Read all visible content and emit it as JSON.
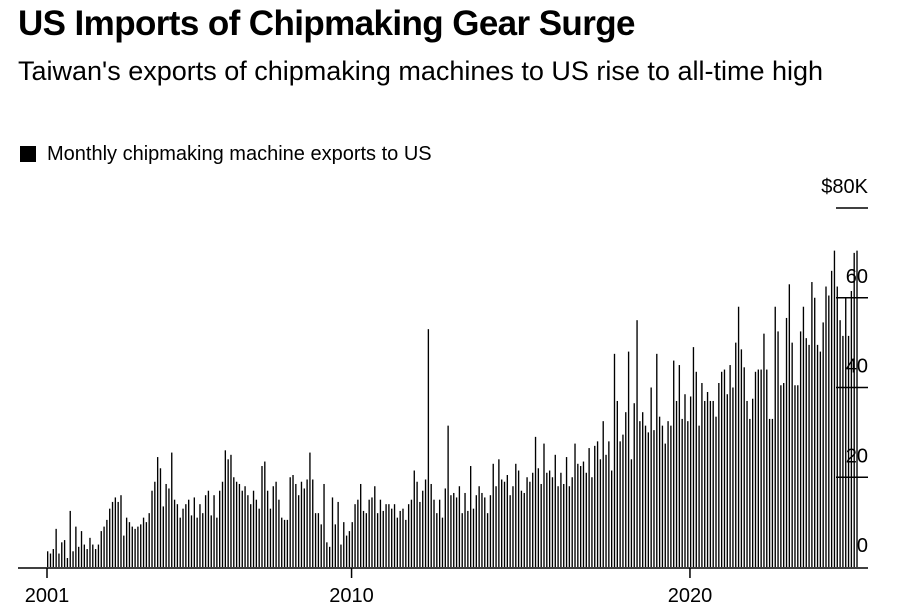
{
  "title": "US Imports of Chipmaking Gear Surge",
  "subtitle": "Taiwan's exports of chipmaking machines to US rise to all-time high",
  "legend_label": "Monthly chipmaking machine exports to US",
  "colors": {
    "bar": "#000000",
    "axis": "#000000",
    "background": "#ffffff"
  },
  "chart_data": {
    "type": "bar",
    "title": "US Imports of Chipmaking Gear Surge",
    "subtitle": "Taiwan's exports of chipmaking machines to US rise to all-time high",
    "xlabel": "",
    "ylabel": "",
    "legend": "top-left",
    "grid": false,
    "x_ticks": [
      {
        "label": "2001",
        "date": "2001-01"
      },
      {
        "label": "2010",
        "date": "2010-01"
      },
      {
        "label": "2020",
        "date": "2020-01"
      }
    ],
    "y_ticks": [
      {
        "label": "$80K",
        "value": 80
      },
      {
        "label": "60",
        "value": 60
      },
      {
        "label": "40",
        "value": 40
      },
      {
        "label": "20",
        "value": 20
      },
      {
        "label": "0",
        "value": 0
      }
    ],
    "ylim": [
      0,
      80
    ],
    "series": [
      {
        "name": "Monthly chipmaking machine exports to US",
        "start": "2001-01",
        "frequency": "monthly",
        "values": [
          3.5,
          3.0,
          4.0,
          8.5,
          3.0,
          5.5,
          6.0,
          2.0,
          12.5,
          3.5,
          9.0,
          4.5,
          8.0,
          5.0,
          4.0,
          6.5,
          5.0,
          4.0,
          5.0,
          8.0,
          9.0,
          10.5,
          13.0,
          14.5,
          15.5,
          14.5,
          16.0,
          7.0,
          11.0,
          10.0,
          9.0,
          8.5,
          9.0,
          9.5,
          11.0,
          10.0,
          12.0,
          17.0,
          19.0,
          24.5,
          22.0,
          13.5,
          18.5,
          17.5,
          25.5,
          15.0,
          14.0,
          11.0,
          13.0,
          14.0,
          15.0,
          11.5,
          15.5,
          11.0,
          14.0,
          12.0,
          16.0,
          17.0,
          11.5,
          16.0,
          11.0,
          17.0,
          19.0,
          26.0,
          24.0,
          25.0,
          20.0,
          19.0,
          18.5,
          17.0,
          18.0,
          16.0,
          14.0,
          17.0,
          15.0,
          13.0,
          22.5,
          23.5,
          17.0,
          13.0,
          18.0,
          19.0,
          15.0,
          11.0,
          10.5,
          10.5,
          20.0,
          20.5,
          18.5,
          16.0,
          19.0,
          17.5,
          19.5,
          25.5,
          19.5,
          12.0,
          12.0,
          9.5,
          18.5,
          5.5,
          4.5,
          15.5,
          9.5,
          14.5,
          5.0,
          10.0,
          7.0,
          8.0,
          10.0,
          14.0,
          15.0,
          18.5,
          12.5,
          12.0,
          15.0,
          15.5,
          18.0,
          12.0,
          15.0,
          12.5,
          14.0,
          14.0,
          13.0,
          14.0,
          11.0,
          12.5,
          13.0,
          10.5,
          14.0,
          15.0,
          21.5,
          19.0,
          14.5,
          17.0,
          19.5,
          53.0,
          18.5,
          15.0,
          12.0,
          15.0,
          11.0,
          17.5,
          31.5,
          16.0,
          16.5,
          15.5,
          18.0,
          12.0,
          16.5,
          12.5,
          22.5,
          13.0,
          16.0,
          18.0,
          16.5,
          15.5,
          12.0,
          16.0,
          23.0,
          18.0,
          24.0,
          19.5,
          19.0,
          20.5,
          16.0,
          18.0,
          23.0,
          21.5,
          17.0,
          16.5,
          20.0,
          19.0,
          21.0,
          29.0,
          22.0,
          18.5,
          27.5,
          21.0,
          21.5,
          20.0,
          25.0,
          18.0,
          21.0,
          18.5,
          24.5,
          18.0,
          20.0,
          27.5,
          23.0,
          22.5,
          23.5,
          21.0,
          26.5,
          20.0,
          27.0,
          28.0,
          24.0,
          32.5,
          25.0,
          28.0,
          21.5,
          47.5,
          37.0,
          28.0,
          29.5,
          34.5,
          48.0,
          24.0,
          36.5,
          55.0,
          32.5,
          34.5,
          31.5,
          30.0,
          40.0,
          30.5,
          47.5,
          33.5,
          31.5,
          27.5,
          32.5,
          31.5,
          46.0,
          37.0,
          45.0,
          33.0,
          38.5,
          32.5,
          38.0,
          49.0,
          43.5,
          31.5,
          41.0,
          37.0,
          39.0,
          37.0,
          37.0,
          33.5,
          41.0,
          43.5,
          44.0,
          38.5,
          45.0,
          40.0,
          50.0,
          58.0,
          48.5,
          44.5,
          37.0,
          33.0,
          37.5,
          43.5,
          44.0,
          44.0,
          52.0,
          44.0,
          33.0,
          33.0,
          58.0,
          52.5,
          40.5,
          41.0,
          55.5,
          63.0,
          50.0,
          40.5,
          40.5,
          52.5,
          58.0,
          51.0,
          49.5,
          63.5,
          60.0,
          49.5,
          48.0,
          54.5,
          62.5,
          60.5,
          66.0,
          70.5,
          62.5,
          55.0,
          51.5,
          60.0,
          51.5,
          61.5,
          70.0,
          70.5
        ]
      }
    ]
  }
}
